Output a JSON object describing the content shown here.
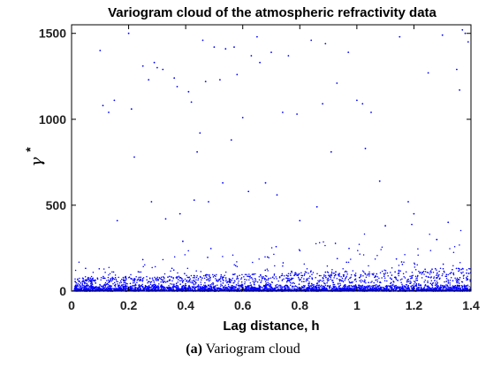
{
  "chart_data": {
    "type": "scatter",
    "title": "Variogram cloud of the atmospheric refractivity data",
    "xlabel": "Lag distance, h",
    "ylabel": "γ",
    "ylabel_superscript": "*",
    "xlim": [
      0,
      1.4
    ],
    "ylim": [
      0,
      1550
    ],
    "xticks": [
      0,
      0.2,
      0.4,
      0.6,
      0.8,
      1,
      1.2,
      1.4
    ],
    "xtick_labels": [
      "0",
      "0.2",
      "0.4",
      "0.6",
      "0.8",
      "1",
      "1.2",
      "1.4"
    ],
    "yticks": [
      0,
      500,
      1000,
      1500
    ],
    "ytick_labels": [
      "0",
      "500",
      "1000",
      "1500"
    ],
    "grid": false,
    "marker_color": "#0000ff",
    "outlier_points": [
      [
        0.1,
        1400
      ],
      [
        0.11,
        1080
      ],
      [
        0.13,
        1040
      ],
      [
        0.15,
        1110
      ],
      [
        0.16,
        410
      ],
      [
        0.2,
        1500
      ],
      [
        0.21,
        1060
      ],
      [
        0.22,
        780
      ],
      [
        0.25,
        1310
      ],
      [
        0.27,
        1230
      ],
      [
        0.28,
        520
      ],
      [
        0.29,
        1330
      ],
      [
        0.3,
        1300
      ],
      [
        0.32,
        1290
      ],
      [
        0.33,
        420
      ],
      [
        0.36,
        1240
      ],
      [
        0.37,
        1190
      ],
      [
        0.38,
        450
      ],
      [
        0.39,
        290
      ],
      [
        0.41,
        1160
      ],
      [
        0.42,
        1100
      ],
      [
        0.43,
        530
      ],
      [
        0.44,
        810
      ],
      [
        0.45,
        920
      ],
      [
        0.46,
        1460
      ],
      [
        0.47,
        1220
      ],
      [
        0.48,
        520
      ],
      [
        0.5,
        1420
      ],
      [
        0.52,
        1230
      ],
      [
        0.53,
        630
      ],
      [
        0.54,
        1410
      ],
      [
        0.56,
        880
      ],
      [
        0.57,
        1420
      ],
      [
        0.58,
        1260
      ],
      [
        0.6,
        1010
      ],
      [
        0.62,
        580
      ],
      [
        0.63,
        1370
      ],
      [
        0.65,
        1480
      ],
      [
        0.66,
        1330
      ],
      [
        0.68,
        630
      ],
      [
        0.7,
        1390
      ],
      [
        0.72,
        560
      ],
      [
        0.74,
        1040
      ],
      [
        0.76,
        1370
      ],
      [
        0.79,
        1030
      ],
      [
        0.8,
        410
      ],
      [
        0.84,
        1460
      ],
      [
        0.86,
        490
      ],
      [
        0.88,
        1090
      ],
      [
        0.89,
        1440
      ],
      [
        0.91,
        810
      ],
      [
        0.93,
        1210
      ],
      [
        0.97,
        1390
      ],
      [
        1.0,
        1110
      ],
      [
        1.02,
        1090
      ],
      [
        1.03,
        830
      ],
      [
        1.05,
        1040
      ],
      [
        1.08,
        640
      ],
      [
        1.1,
        380
      ],
      [
        1.15,
        1480
      ],
      [
        1.18,
        520
      ],
      [
        1.2,
        450
      ],
      [
        1.25,
        1270
      ],
      [
        1.28,
        300
      ],
      [
        1.3,
        1490
      ],
      [
        1.32,
        400
      ],
      [
        1.35,
        1290
      ],
      [
        1.36,
        1170
      ],
      [
        1.37,
        1520
      ],
      [
        1.38,
        1500
      ],
      [
        1.39,
        1450
      ]
    ]
  },
  "caption": {
    "label": "(a)",
    "text": " Variogram cloud"
  }
}
